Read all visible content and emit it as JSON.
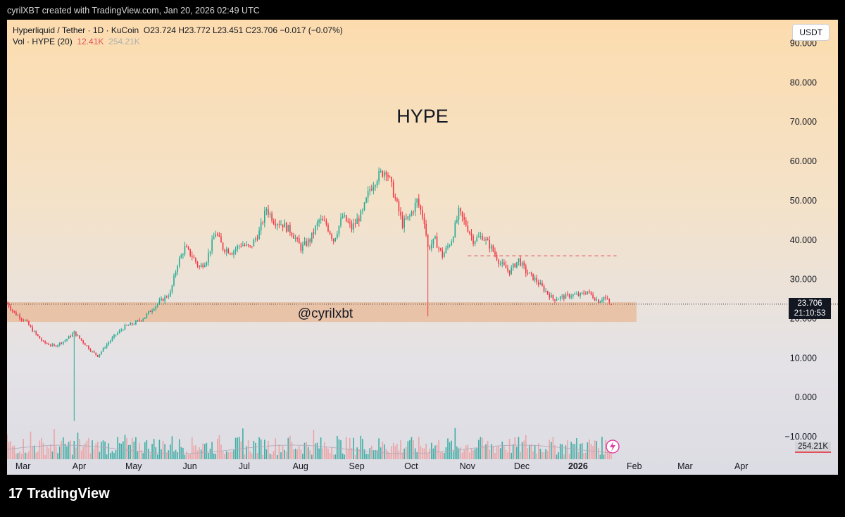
{
  "header": {
    "text": "cyrilXBT created with TradingView.com, Jan 20, 2026 02:49 UTC"
  },
  "legend": {
    "symbol": "Hyperliquid / Tether · 1D · KuCoin",
    "ohlc": "O23.724  H23.772  L23.451  C23.706  −0.017 (−0.07%)",
    "vol_label": "Vol · HYPE (20)",
    "vol_value": "12.41K",
    "vol_ma": "254.21K"
  },
  "currency": "USDT",
  "annotations": {
    "title": "HYPE",
    "watermark": "@cyrilxbt"
  },
  "price_tag": {
    "price": "23.706",
    "countdown": "21:10:53"
  },
  "volume_tag": "254.21K",
  "footer": {
    "brand": "TradingView",
    "mark": "17"
  },
  "colors": {
    "up": "#22ab94",
    "down": "#f23645",
    "volume_up": "#26a69a",
    "volume_down": "#ef9a9a",
    "support_zone": "#e8b896",
    "resistance_line": "#e2525b"
  },
  "chart_data": {
    "type": "candlestick",
    "title": "HYPE",
    "yaxis_ticks": [
      "90.000",
      "80.000",
      "70.000",
      "60.000",
      "50.000",
      "40.000",
      "30.000",
      "20.000",
      "10.000",
      "0.000",
      "−10.000"
    ],
    "ylim": [
      -15,
      96
    ],
    "xaxis_ticks": [
      {
        "label": "Mar",
        "date": "2025-03-01"
      },
      {
        "label": "Apr",
        "date": "2025-04-01"
      },
      {
        "label": "May",
        "date": "2025-05-01"
      },
      {
        "label": "Jun",
        "date": "2025-06-01"
      },
      {
        "label": "Jul",
        "date": "2025-07-01"
      },
      {
        "label": "Aug",
        "date": "2025-08-01"
      },
      {
        "label": "Sep",
        "date": "2025-09-01"
      },
      {
        "label": "Oct",
        "date": "2025-10-01"
      },
      {
        "label": "Nov",
        "date": "2025-11-01"
      },
      {
        "label": "Dec",
        "date": "2025-12-01"
      },
      {
        "label": "2026",
        "date": "2026-01-01",
        "bold": true
      },
      {
        "label": "Feb",
        "date": "2026-02-01"
      },
      {
        "label": "Mar",
        "date": "2026-03-01"
      },
      {
        "label": "Apr",
        "date": "2026-04-01"
      }
    ],
    "xlim": [
      "2025-02-21",
      "2026-04-24"
    ],
    "last_close": 23.706,
    "support_zone": {
      "from": 19.2,
      "to": 24.2
    },
    "resistance_line": {
      "price": 36.0,
      "from": "2025-11-02",
      "to": "2026-01-23"
    },
    "closes": [
      {
        "date": "2025-02-21",
        "close": 24.0
      },
      {
        "date": "2025-02-25",
        "close": 21.5
      },
      {
        "date": "2025-03-03",
        "close": 19.5
      },
      {
        "date": "2025-03-08",
        "close": 16.5
      },
      {
        "date": "2025-03-13",
        "close": 14.0
      },
      {
        "date": "2025-03-19",
        "close": 13.0
      },
      {
        "date": "2025-03-25",
        "close": 14.5
      },
      {
        "date": "2025-03-30",
        "close": 16.5
      },
      {
        "date": "2025-04-04",
        "close": 14.0
      },
      {
        "date": "2025-04-08",
        "close": 12.0
      },
      {
        "date": "2025-04-12",
        "close": 10.5
      },
      {
        "date": "2025-04-17",
        "close": 13.5
      },
      {
        "date": "2025-04-22",
        "close": 16.0
      },
      {
        "date": "2025-04-27",
        "close": 18.0
      },
      {
        "date": "2025-05-03",
        "close": 19.0
      },
      {
        "date": "2025-05-08",
        "close": 20.5
      },
      {
        "date": "2025-05-13",
        "close": 23.0
      },
      {
        "date": "2025-05-18",
        "close": 25.0
      },
      {
        "date": "2025-05-22",
        "close": 26.5
      },
      {
        "date": "2025-05-26",
        "close": 34.0
      },
      {
        "date": "2025-05-30",
        "close": 38.0
      },
      {
        "date": "2025-06-03",
        "close": 36.0
      },
      {
        "date": "2025-06-07",
        "close": 33.0
      },
      {
        "date": "2025-06-11",
        "close": 35.0
      },
      {
        "date": "2025-06-16",
        "close": 42.0
      },
      {
        "date": "2025-06-20",
        "close": 38.0
      },
      {
        "date": "2025-06-25",
        "close": 37.0
      },
      {
        "date": "2025-06-30",
        "close": 39.0
      },
      {
        "date": "2025-07-05",
        "close": 38.0
      },
      {
        "date": "2025-07-10",
        "close": 42.0
      },
      {
        "date": "2025-07-14",
        "close": 48.0
      },
      {
        "date": "2025-07-18",
        "close": 45.0
      },
      {
        "date": "2025-07-23",
        "close": 44.0
      },
      {
        "date": "2025-07-28",
        "close": 42.0
      },
      {
        "date": "2025-08-02",
        "close": 38.0
      },
      {
        "date": "2025-08-07",
        "close": 40.0
      },
      {
        "date": "2025-08-12",
        "close": 45.0
      },
      {
        "date": "2025-08-16",
        "close": 44.0
      },
      {
        "date": "2025-08-20",
        "close": 40.0
      },
      {
        "date": "2025-08-25",
        "close": 46.0
      },
      {
        "date": "2025-08-30",
        "close": 43.0
      },
      {
        "date": "2025-09-05",
        "close": 47.0
      },
      {
        "date": "2025-09-09",
        "close": 53.0
      },
      {
        "date": "2025-09-13",
        "close": 56.0
      },
      {
        "date": "2025-09-18",
        "close": 58.0
      },
      {
        "date": "2025-09-22",
        "close": 52.0
      },
      {
        "date": "2025-09-27",
        "close": 44.0
      },
      {
        "date": "2025-10-01",
        "close": 46.0
      },
      {
        "date": "2025-10-05",
        "close": 50.0
      },
      {
        "date": "2025-10-09",
        "close": 45.0
      },
      {
        "date": "2025-10-11",
        "close": 38.0
      },
      {
        "date": "2025-10-15",
        "close": 40.0
      },
      {
        "date": "2025-10-19",
        "close": 36.0
      },
      {
        "date": "2025-10-24",
        "close": 40.0
      },
      {
        "date": "2025-10-28",
        "close": 47.0
      },
      {
        "date": "2025-11-01",
        "close": 44.0
      },
      {
        "date": "2025-11-05",
        "close": 40.0
      },
      {
        "date": "2025-11-10",
        "close": 41.0
      },
      {
        "date": "2025-11-15",
        "close": 38.0
      },
      {
        "date": "2025-11-20",
        "close": 34.0
      },
      {
        "date": "2025-11-25",
        "close": 32.0
      },
      {
        "date": "2025-11-30",
        "close": 35.0
      },
      {
        "date": "2025-12-04",
        "close": 32.0
      },
      {
        "date": "2025-12-09",
        "close": 30.0
      },
      {
        "date": "2025-12-14",
        "close": 27.5
      },
      {
        "date": "2025-12-19",
        "close": 25.0
      },
      {
        "date": "2025-12-24",
        "close": 25.5
      },
      {
        "date": "2025-12-29",
        "close": 26.0
      },
      {
        "date": "2026-01-03",
        "close": 26.0
      },
      {
        "date": "2026-01-07",
        "close": 27.0
      },
      {
        "date": "2026-01-09",
        "close": 26.0
      },
      {
        "date": "2026-01-13",
        "close": 24.5
      },
      {
        "date": "2026-01-16",
        "close": 25.5
      },
      {
        "date": "2026-01-20",
        "close": 23.7
      }
    ],
    "wicks": [
      {
        "date": "2025-03-30",
        "low": -6.0,
        "high": 17.0
      },
      {
        "date": "2025-10-11",
        "low": 20.6,
        "high": 39.0
      }
    ],
    "volume_ma": 254.21,
    "volume_unit": "K"
  }
}
